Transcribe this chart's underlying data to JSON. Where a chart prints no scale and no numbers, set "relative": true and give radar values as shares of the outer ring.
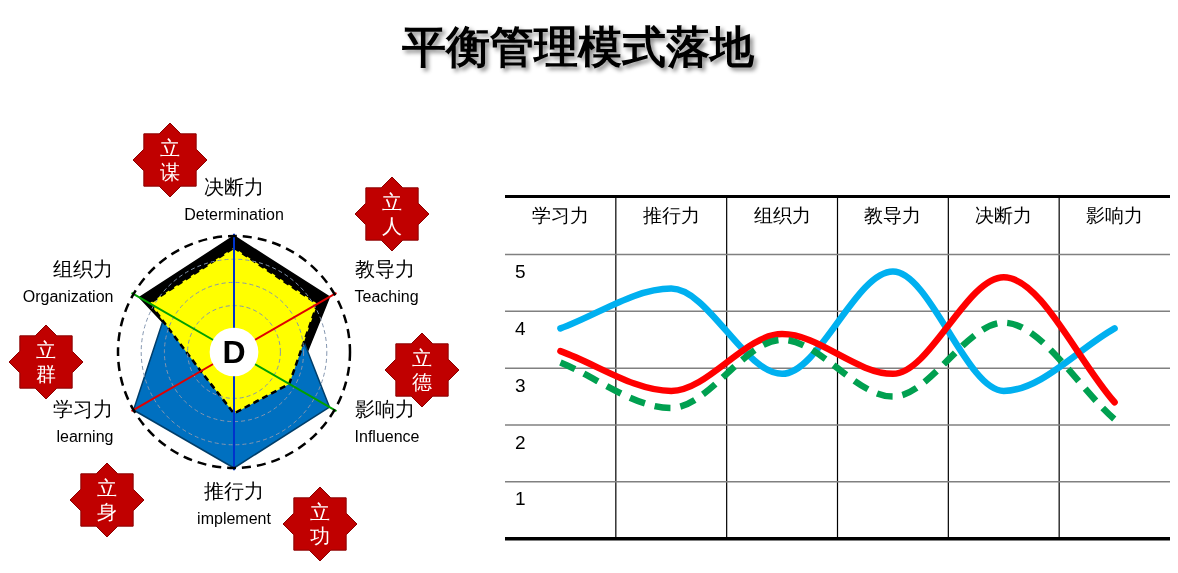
{
  "chart_data": [
    {
      "type": "radar",
      "title": "平衡管理模式落地",
      "relative": true,
      "grid": true,
      "categories": [
        "决断力\nDetermination",
        "教导力\nTeaching",
        "影响力\nInfluence",
        "推行力\nimplement",
        "学习力\nlearning",
        "组织力\nOrganization"
      ],
      "series": [
        {
          "color": "#000000",
          "values": [
            1.0,
            0.95,
            0.59,
            null,
            0.28,
            0.94
          ]
        },
        {
          "color": "#0070c0",
          "values": [
            null,
            0.6,
            0.95,
            1.0,
            1.0,
            0.68
          ]
        },
        {
          "color": "#ffff00",
          "line_style": "dashed",
          "values": [
            0.9,
            0.83,
            0.55,
            0.53,
            0.33,
            0.84
          ]
        }
      ],
      "annotations": [
        "D",
        "立谋",
        "立人",
        "立德",
        "立功",
        "立身",
        "立群"
      ]
    },
    {
      "type": "line",
      "categories": [
        "学习力",
        "推行力",
        "组织力",
        "教导力",
        "决断力",
        "影响力"
      ],
      "series": [
        {
          "color": "#00b0f0",
          "values": [
            3.7,
            4.4,
            2.9,
            4.7,
            2.6,
            3.7
          ]
        },
        {
          "color": "#ff0000",
          "values": [
            3.3,
            2.6,
            3.6,
            2.9,
            4.6,
            2.4
          ]
        },
        {
          "color": "#00a050",
          "line_style": "dashed",
          "values": [
            3.1,
            2.3,
            3.5,
            2.5,
            3.8,
            2.1
          ]
        }
      ],
      "ylim": [
        0,
        5
      ],
      "yticks": [
        1,
        2,
        3,
        4,
        5
      ],
      "grid": true
    }
  ]
}
